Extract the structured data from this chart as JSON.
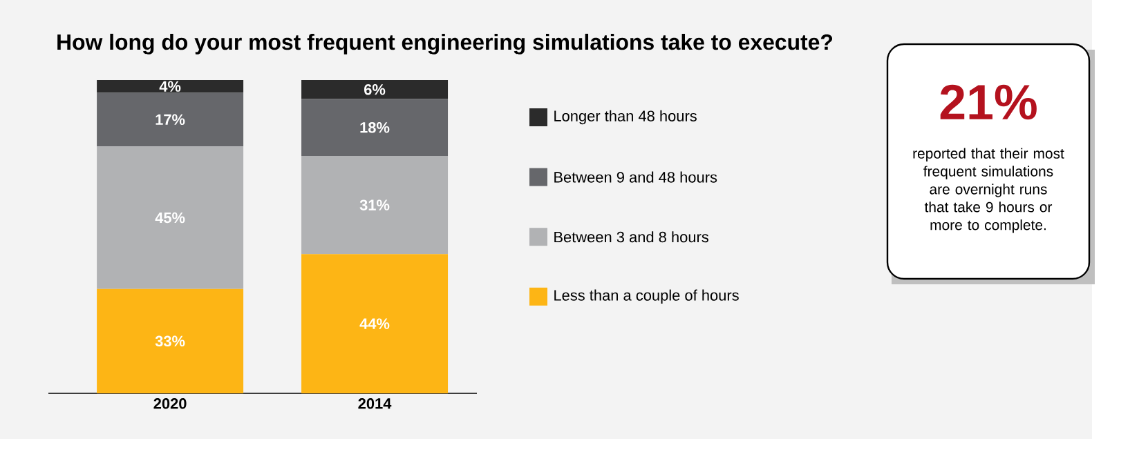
{
  "chart_data": {
    "type": "bar",
    "stacked": true,
    "legend": "right",
    "title": "How long do your most frequent engineering simulations take to execute?",
    "categories": [
      "2020",
      "2014"
    ],
    "series": [
      {
        "name": "Less than a couple of hours",
        "color": "#fdb515",
        "values": [
          33,
          44
        ],
        "value_labels": [
          "33%",
          "44%"
        ]
      },
      {
        "name": "Between 3 and 8 hours",
        "color": "#b1b2b4",
        "values": [
          45,
          31
        ],
        "value_labels": [
          "45%",
          "31%"
        ]
      },
      {
        "name": "Between 9 and 48 hours",
        "color": "#66676b",
        "values": [
          17,
          18
        ],
        "value_labels": [
          "17%",
          "18%"
        ]
      },
      {
        "name": "Longer than 48 hours",
        "color": "#2b2b2b",
        "values": [
          4,
          6
        ],
        "value_labels": [
          "4%",
          "6%"
        ]
      }
    ],
    "annotations": [
      "21%",
      "reported that their most frequent simulations are overnight runs that take 9 hours or more to complete."
    ]
  }
}
